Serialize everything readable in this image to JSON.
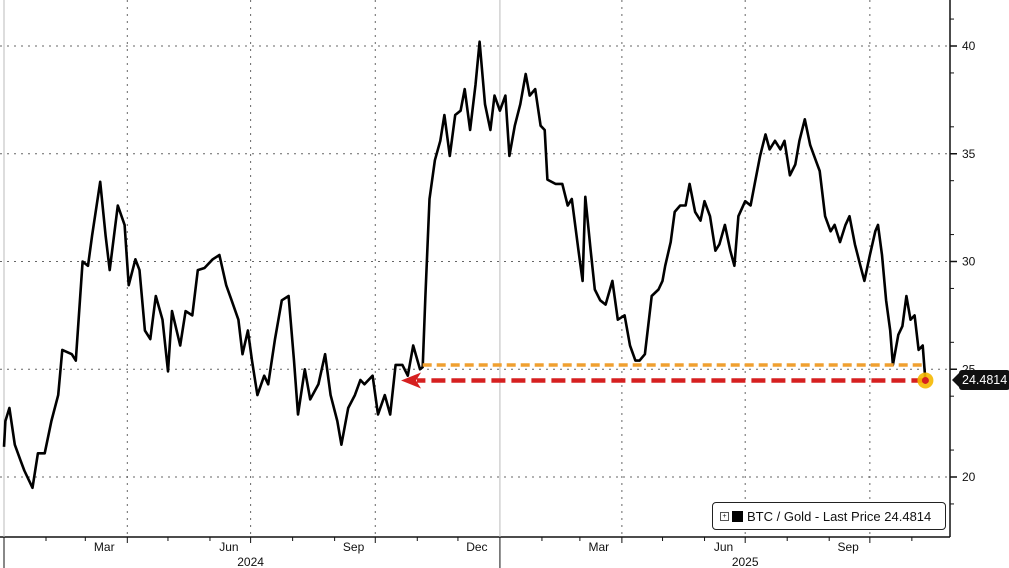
{
  "chart_data": {
    "type": "line",
    "title": "",
    "xlabel": "",
    "ylabel": "",
    "xlim": [
      "2024-01-01",
      "2025-11-25"
    ],
    "ylim": [
      18,
      42
    ],
    "yticks": [
      20,
      25,
      30,
      35,
      40
    ],
    "ytick_labels": [
      "20",
      "25",
      "30",
      "35",
      "40"
    ],
    "xtick_labels": [
      {
        "label": "Mar",
        "date": "2024-03-15"
      },
      {
        "label": "Jun",
        "date": "2024-06-15"
      },
      {
        "label": "Sep",
        "date": "2024-09-15"
      },
      {
        "label": "Dec",
        "date": "2024-12-15"
      },
      {
        "label": "Mar",
        "date": "2025-03-15"
      },
      {
        "label": "Jun",
        "date": "2025-06-15"
      },
      {
        "label": "Sep",
        "date": "2025-09-15"
      }
    ],
    "year_labels": [
      {
        "label": "2024",
        "date": "2024-07-01"
      },
      {
        "label": "2025",
        "date": "2025-07-01"
      }
    ],
    "grid": true,
    "legend_placement": "bottom-right",
    "colors": {
      "series": "#000000",
      "orange_line": "#f0a030",
      "red_line": "#d62020",
      "end_marker": "#f5b800"
    },
    "series": [
      {
        "name": "BTC / Gold",
        "legend_text": "BTC / Gold - Last Price 24.4814",
        "last_price": "24.4814",
        "x": [
          "2024-01-01",
          "2024-01-02",
          "2024-01-05",
          "2024-01-09",
          "2024-01-13",
          "2024-01-16",
          "2024-01-22",
          "2024-01-26",
          "2024-01-31",
          "2024-02-05",
          "2024-02-10",
          "2024-02-13",
          "2024-02-20",
          "2024-02-23",
          "2024-02-28",
          "2024-03-03",
          "2024-03-06",
          "2024-03-12",
          "2024-03-16",
          "2024-03-19",
          "2024-03-25",
          "2024-03-30",
          "2024-04-02",
          "2024-04-07",
          "2024-04-10",
          "2024-04-14",
          "2024-04-18",
          "2024-04-22",
          "2024-04-27",
          "2024-05-01",
          "2024-05-04",
          "2024-05-10",
          "2024-05-14",
          "2024-05-19",
          "2024-05-23",
          "2024-05-28",
          "2024-06-03",
          "2024-06-08",
          "2024-06-13",
          "2024-06-17",
          "2024-06-22",
          "2024-06-25",
          "2024-06-29",
          "2024-07-02",
          "2024-07-06",
          "2024-07-11",
          "2024-07-14",
          "2024-07-19",
          "2024-07-24",
          "2024-07-29",
          "2024-08-02",
          "2024-08-05",
          "2024-08-10",
          "2024-08-14",
          "2024-08-20",
          "2024-08-25",
          "2024-08-29",
          "2024-09-03",
          "2024-09-06",
          "2024-09-11",
          "2024-09-16",
          "2024-09-20",
          "2024-09-23",
          "2024-09-29",
          "2024-10-03",
          "2024-10-08",
          "2024-10-12",
          "2024-10-16",
          "2024-10-21",
          "2024-10-25",
          "2024-10-29",
          "2024-11-03",
          "2024-11-05",
          "2024-11-07",
          "2024-11-10",
          "2024-11-14",
          "2024-11-18",
          "2024-11-21",
          "2024-11-25",
          "2024-11-29",
          "2024-12-03",
          "2024-12-06",
          "2024-12-10",
          "2024-12-14",
          "2024-12-17",
          "2024-12-21",
          "2024-12-25",
          "2024-12-28",
          "2025-01-01",
          "2025-01-05",
          "2025-01-08",
          "2025-01-12",
          "2025-01-16",
          "2025-01-20",
          "2025-01-23",
          "2025-01-27",
          "2025-01-31",
          "2025-02-03",
          "2025-02-05",
          "2025-02-11",
          "2025-02-16",
          "2025-02-20",
          "2025-02-23",
          "2025-02-28",
          "2025-03-03",
          "2025-03-05",
          "2025-03-09",
          "2025-03-12",
          "2025-03-16",
          "2025-03-20",
          "2025-03-25",
          "2025-03-29",
          "2025-04-03",
          "2025-04-07",
          "2025-04-11",
          "2025-04-14",
          "2025-04-18",
          "2025-04-23",
          "2025-04-28",
          "2025-05-01",
          "2025-05-03",
          "2025-05-07",
          "2025-05-10",
          "2025-05-14",
          "2025-05-18",
          "2025-05-21",
          "2025-05-25",
          "2025-05-29",
          "2025-06-01",
          "2025-06-05",
          "2025-06-09",
          "2025-06-12",
          "2025-06-16",
          "2025-06-20",
          "2025-06-23",
          "2025-06-26",
          "2025-07-01",
          "2025-07-05",
          "2025-07-08",
          "2025-07-12",
          "2025-07-16",
          "2025-07-19",
          "2025-07-23",
          "2025-07-27",
          "2025-07-30",
          "2025-08-03",
          "2025-08-07",
          "2025-08-10",
          "2025-08-14",
          "2025-08-18",
          "2025-08-22",
          "2025-08-25",
          "2025-08-29",
          "2025-09-02",
          "2025-09-05",
          "2025-09-09",
          "2025-09-13",
          "2025-09-16",
          "2025-09-20",
          "2025-09-24",
          "2025-09-27",
          "2025-10-01",
          "2025-10-05",
          "2025-10-07",
          "2025-10-10",
          "2025-10-13",
          "2025-10-16",
          "2025-10-18",
          "2025-10-22",
          "2025-10-25",
          "2025-10-28",
          "2025-10-31",
          "2025-11-03",
          "2025-11-06",
          "2025-11-09",
          "2025-11-11"
        ],
        "y": [
          21.4,
          22.6,
          23.2,
          21.5,
          20.8,
          20.3,
          19.5,
          21.1,
          21.1,
          22.6,
          23.8,
          25.9,
          25.7,
          25.4,
          30.0,
          29.8,
          31.2,
          33.7,
          31.2,
          29.6,
          32.6,
          31.7,
          28.9,
          30.1,
          29.6,
          26.8,
          26.4,
          28.4,
          27.3,
          24.9,
          27.7,
          26.1,
          27.7,
          27.5,
          29.6,
          29.7,
          30.1,
          30.3,
          28.9,
          28.2,
          27.3,
          25.7,
          26.8,
          25.4,
          23.8,
          24.7,
          24.3,
          26.4,
          28.2,
          28.4,
          25.4,
          22.9,
          25.0,
          23.6,
          24.3,
          25.7,
          23.8,
          22.6,
          21.5,
          23.2,
          23.8,
          24.5,
          24.3,
          24.7,
          22.9,
          23.8,
          22.9,
          25.2,
          25.2,
          24.7,
          26.1,
          25.0,
          25.1,
          28.4,
          32.9,
          34.7,
          35.6,
          36.8,
          34.9,
          36.8,
          37.0,
          38.0,
          36.1,
          38.2,
          40.2,
          37.3,
          36.1,
          37.7,
          37.0,
          37.7,
          34.9,
          36.3,
          37.3,
          38.7,
          37.7,
          38.0,
          36.3,
          36.1,
          33.8,
          33.6,
          33.6,
          32.6,
          32.9,
          30.5,
          29.1,
          33.0,
          30.5,
          28.7,
          28.2,
          28.0,
          29.1,
          27.3,
          27.5,
          26.1,
          25.4,
          25.4,
          25.7,
          28.4,
          28.7,
          29.1,
          29.8,
          30.9,
          32.3,
          32.6,
          32.6,
          33.6,
          32.3,
          31.9,
          32.8,
          32.1,
          30.5,
          30.8,
          31.7,
          30.5,
          29.8,
          32.1,
          32.8,
          32.6,
          33.6,
          34.9,
          35.9,
          35.2,
          35.6,
          35.2,
          35.6,
          34.0,
          34.5,
          35.6,
          36.6,
          35.4,
          34.7,
          34.2,
          32.1,
          31.4,
          31.7,
          30.9,
          31.7,
          32.1,
          30.8,
          29.8,
          29.1,
          30.3,
          31.4,
          31.7,
          30.3,
          28.2,
          26.8,
          25.2,
          26.6,
          27.0,
          28.4,
          27.3,
          27.5,
          25.9,
          26.1,
          24.48
        ]
      }
    ],
    "annotations": [
      {
        "type": "dashed-hline",
        "color": "orange",
        "value": 25.2,
        "from": "2024-11-05",
        "to": "2025-11-11"
      },
      {
        "type": "dashed-arrow",
        "color": "red",
        "value": 24.48,
        "from": "2025-11-11",
        "to": "2024-10-20"
      },
      {
        "type": "marker",
        "color": "yellow",
        "date": "2025-11-11",
        "value": 24.48
      }
    ]
  }
}
